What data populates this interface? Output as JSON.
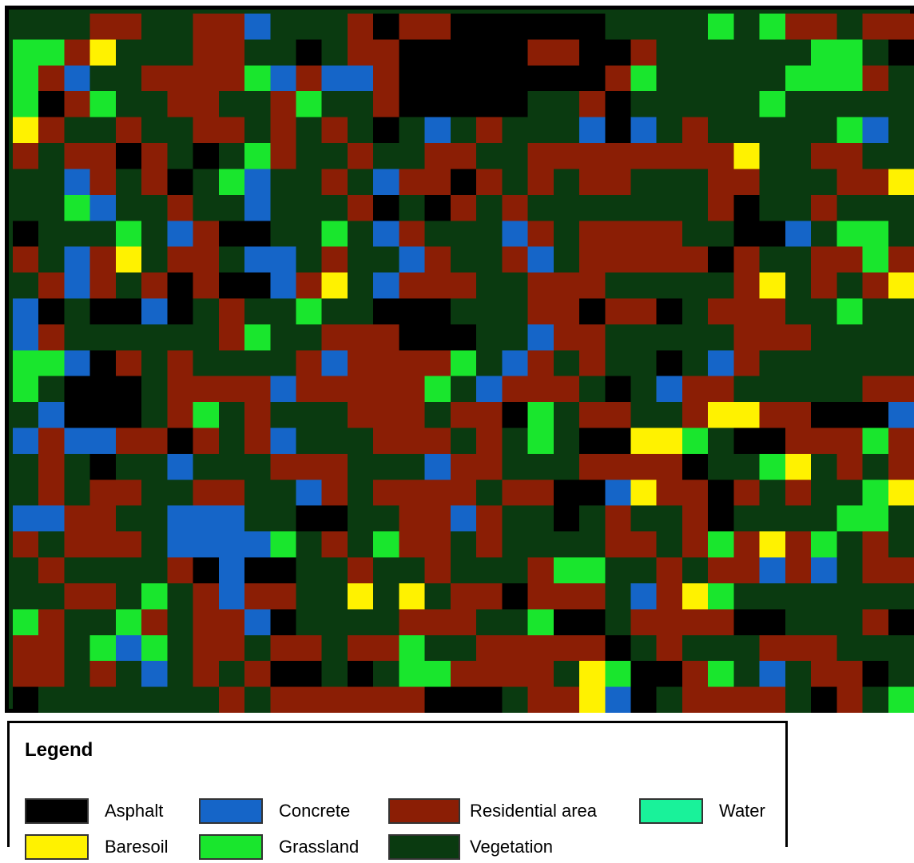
{
  "legend": {
    "title": "Legend",
    "items": [
      {
        "id": "asphalt",
        "label": "Asphalt",
        "color": "#000000"
      },
      {
        "id": "concrete",
        "label": "Concrete",
        "color": "#1565c8"
      },
      {
        "id": "residential",
        "label": "Residential area",
        "color": "#8b1e05"
      },
      {
        "id": "water",
        "label": "Water",
        "color": "#19f29a"
      },
      {
        "id": "baresoil",
        "label": "Baresoil",
        "color": "#fff200"
      },
      {
        "id": "grassland",
        "label": "Grassland",
        "color": "#19e62d"
      },
      {
        "id": "vegetation",
        "label": "Vegetation",
        "color": "#0a3a10"
      }
    ]
  },
  "map": {
    "cols": 35,
    "rows": 27,
    "class_codes": {
      "A": "asphalt",
      "C": "concrete",
      "R": "residential",
      "W": "water",
      "B": "baresoil",
      "G": "grassland",
      "V": "vegetation"
    },
    "grid": [
      "VVVRRVVRRCVVVRARRAAAAAAVVVVGVGRRVRR",
      "GGRBVVVRRVVAVRRAAAAARRAARVVVVVVGGVA",
      "GRCVVRRRRGCRCCRAAAAAAAARGVVVVVGGGRV",
      "GARGVVRRVVRGVVRAAAAAVVRAVVVVVGVVVVV",
      "BRVVRVVRRVRVRVAVCVRVVVCACVRVVVVVGCV",
      "RVRRARVAVGRVVRVVRRVVRRRRRRRRBVVRRVV",
      "VVCRVRAVGCVVRVCRRARVRVRRVVVRRVVVRRB",
      "VVGCVVRVVCVVVRAVARVRVVVVVVVRAVVRVVV",
      "AVVVGVCRAAVVGVCRVVVCRVRRRRVVAACVGGV",
      "RVCRBVRRVCCVRVVCRVVRCVRRRRRARVVRRGR",
      "VRCRVRARAACRBVCRRRVVRRRVVVVVRBVRVRB",
      "CAVAACAVRVVGVVAAAVVVRRARRAVRRRVVGVV",
      "CRVVVVVVRGVVRRRAAAVVCRRVVVVVRRRVVVVG",
      "GGCARVRVVVVRCRRRRGVCRVRVVAVCRVVVVVVG",
      "GVAAAVRRRRCRRRRRGVCRRRVAVCRRVVVVVRRV",
      "VCAAAVRGVRVVVRRRVRRAGVRRVVRBBRRAAAC",
      "CRCCRRARVRCVVVRRRVRVGVAABBGVAARRRGR",
      "VRVAVVCVVVRRRVVVCRRVVVRRRRAVVGBVRVR",
      "VRVRRVVRRVVCRVRRRRVRRAACBRRARVRVVGB",
      "CCRRVVCCCVVAAVVRRCRVVAVRVVRAVVVVGGV",
      "RVRRRVCCCCGVRVGRRVRVVVVRRVRGRBRGVRV",
      "VRVVVVRACAAVVRVVRVVVRGGVVRVRRCRCVRR",
      "VVRRVGVRCRRVVBVBVRRARRRVCRBGVVVVVVV",
      "GRVVGRVRRCAVVVVRRRVVGAAVRRRRAAVVVRA",
      "RRVGCGVRRVRRVRRGVVRRRRRAVRVVVRRRVVV",
      "RRVRVCVRVRAAVAVGGRRRRVBGAARGVCVRRAV",
      "AVVVVVVVRVRRRRRRAAAVRRBCAVRRRRVARVG"
    ]
  }
}
